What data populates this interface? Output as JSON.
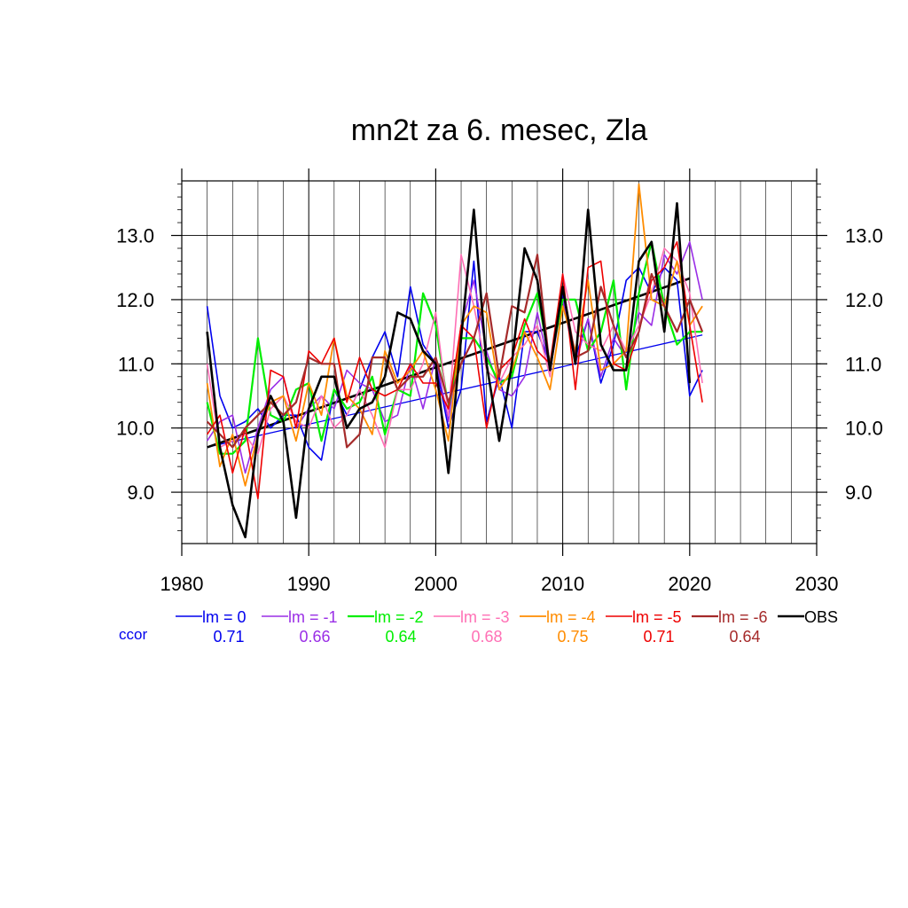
{
  "chart_data": {
    "type": "line",
    "title": "mn2t za 6. mesec, Zla",
    "xlim": [
      1980,
      2030
    ],
    "ylim": [
      8.2,
      13.85
    ],
    "x_ticks": [
      "1980",
      "1990",
      "2000",
      "2010",
      "2020",
      "2030"
    ],
    "y_ticks": [
      "9.0",
      "10.0",
      "11.0",
      "12.0",
      "13.0"
    ],
    "grid": true,
    "legend_position": "bottom",
    "ccor_label": "ccor",
    "years": [
      1982,
      1983,
      1984,
      1985,
      1986,
      1987,
      1988,
      1989,
      1990,
      1991,
      1992,
      1993,
      1994,
      1995,
      1996,
      1997,
      1998,
      1999,
      2000,
      2001,
      2002,
      2003,
      2004,
      2005,
      2006,
      2007,
      2008,
      2009,
      2010,
      2011,
      2012,
      2013,
      2014,
      2015,
      2016,
      2017,
      2018,
      2019,
      2020,
      2021
    ],
    "series": [
      {
        "name": "lm = 0",
        "color": "#0000ee",
        "ccor": "0.71",
        "width": 1.6,
        "values": [
          11.9,
          10.5,
          10.0,
          10.1,
          10.3,
          10.0,
          10.2,
          10.2,
          9.7,
          9.5,
          10.6,
          10.2,
          10.6,
          11.1,
          11.5,
          10.8,
          12.2,
          11.3,
          11.0,
          10.0,
          10.6,
          12.6,
          10.1,
          10.8,
          10.0,
          11.5,
          11.5,
          11.0,
          12.1,
          11.1,
          11.7,
          10.7,
          11.3,
          12.3,
          12.5,
          12.1,
          12.5,
          12.3,
          10.5,
          10.9
        ]
      },
      {
        "name": "lm = -1",
        "color": "#9a2ee6",
        "ccor": "0.66",
        "width": 1.6,
        "values": [
          9.8,
          10.1,
          10.2,
          9.3,
          10.0,
          10.6,
          10.8,
          10.0,
          10.3,
          10.5,
          10.3,
          10.9,
          10.7,
          10.6,
          10.1,
          10.2,
          11.0,
          10.3,
          11.1,
          10.1,
          11.6,
          12.3,
          11.2,
          10.6,
          10.5,
          10.8,
          11.8,
          10.9,
          12.0,
          11.0,
          11.7,
          10.8,
          11.4,
          11.1,
          11.8,
          11.6,
          12.7,
          12.4,
          12.9,
          12.0
        ]
      },
      {
        "name": "lm = -2",
        "color": "#00ee00",
        "ccor": "0.64",
        "width": 2.2,
        "values": [
          10.4,
          9.6,
          9.6,
          9.8,
          11.4,
          10.2,
          10.1,
          10.6,
          10.7,
          9.8,
          10.6,
          10.3,
          10.4,
          10.8,
          9.9,
          10.6,
          10.5,
          12.1,
          11.6,
          10.3,
          11.4,
          11.4,
          11.1,
          10.7,
          10.8,
          11.6,
          12.1,
          11.0,
          12.0,
          12.0,
          11.2,
          11.5,
          12.3,
          10.6,
          12.1,
          12.9,
          11.9,
          11.3,
          11.5,
          11.5
        ]
      },
      {
        "name": "lm = -3",
        "color": "#ff70b5",
        "ccor": "0.68",
        "width": 1.6,
        "values": [
          11.0,
          9.7,
          9.8,
          9.9,
          9.6,
          10.3,
          10.5,
          10.1,
          10.0,
          10.5,
          10.0,
          10.2,
          10.6,
          10.2,
          9.7,
          10.6,
          10.6,
          11.0,
          11.8,
          10.2,
          12.7,
          11.9,
          10.9,
          10.7,
          11.1,
          11.3,
          11.6,
          10.8,
          12.4,
          11.5,
          11.3,
          11.2,
          11.6,
          11.2,
          11.6,
          12.1,
          12.8,
          12.6,
          12.1,
          10.7
        ]
      },
      {
        "name": "lm = -4",
        "color": "#ff8c00",
        "ccor": "0.75",
        "width": 1.8,
        "values": [
          10.7,
          9.4,
          9.9,
          9.1,
          9.9,
          10.4,
          10.5,
          9.8,
          10.7,
          10.2,
          11.4,
          10.5,
          10.3,
          9.9,
          11.2,
          10.7,
          10.9,
          11.2,
          10.6,
          9.8,
          11.6,
          11.9,
          11.8,
          10.6,
          10.9,
          11.5,
          11.1,
          10.6,
          11.9,
          11.2,
          12.3,
          10.9,
          11.0,
          11.2,
          13.8,
          12.0,
          11.9,
          12.6,
          11.6,
          11.9
        ]
      },
      {
        "name": "lm = -5",
        "color": "#ee0000",
        "ccor": "0.71",
        "width": 1.6,
        "values": [
          9.9,
          10.2,
          9.3,
          10.0,
          8.9,
          10.9,
          10.8,
          10.0,
          11.2,
          11.0,
          11.4,
          10.4,
          11.1,
          10.6,
          10.5,
          10.6,
          11.0,
          10.7,
          10.7,
          10.3,
          11.6,
          11.4,
          10.0,
          10.9,
          11.1,
          11.7,
          11.2,
          11.0,
          12.4,
          10.6,
          12.5,
          12.6,
          11.0,
          10.9,
          11.5,
          12.3,
          12.5,
          12.9,
          11.6,
          10.4
        ]
      },
      {
        "name": "lm = -6",
        "color": "#a52a2a",
        "ccor": "0.64",
        "width": 2.2,
        "values": [
          10.1,
          9.9,
          9.7,
          10.0,
          10.2,
          10.4,
          10.2,
          10.4,
          11.1,
          11.0,
          11.0,
          9.7,
          9.9,
          11.1,
          11.1,
          10.6,
          10.8,
          10.8,
          11.1,
          10.4,
          11.0,
          11.4,
          12.1,
          10.8,
          11.9,
          11.8,
          12.7,
          10.9,
          12.2,
          11.1,
          11.2,
          12.2,
          11.6,
          11.1,
          11.5,
          12.4,
          11.9,
          11.5,
          12.0,
          11.5
        ]
      },
      {
        "name": "OBS",
        "color": "#000000",
        "ccor": "",
        "width": 2.6,
        "values": [
          11.5,
          9.7,
          8.8,
          8.3,
          9.9,
          10.5,
          10.1,
          8.6,
          10.3,
          10.8,
          10.8,
          10.0,
          10.3,
          10.4,
          10.8,
          11.8,
          11.7,
          11.2,
          11.0,
          9.3,
          11.4,
          13.4,
          11.0,
          9.8,
          11.0,
          12.8,
          12.3,
          10.9,
          12.2,
          11.0,
          13.4,
          11.3,
          10.9,
          10.9,
          12.6,
          12.9,
          11.5,
          13.5,
          10.7,
          null
        ]
      }
    ],
    "trend_obs": {
      "color": "#000000",
      "x": [
        1982,
        2020
      ],
      "y": [
        9.7,
        12.33
      ]
    },
    "trend_lm0": {
      "color": "#0000ee",
      "x": [
        1982,
        2021
      ],
      "y": [
        9.7,
        11.45
      ]
    }
  }
}
